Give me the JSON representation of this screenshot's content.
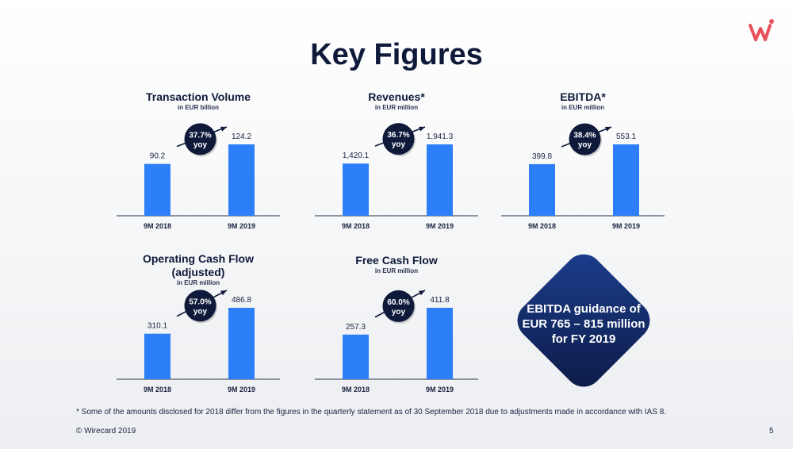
{
  "title": "Key Figures",
  "brand_color": "#e8505b",
  "bar_color": "#2d7ff9",
  "badge_color": "#0f1a3a",
  "chart_data": [
    {
      "type": "bar",
      "title": "Transaction Volume",
      "unit": "in EUR billion",
      "categories": [
        "9M 2018",
        "9M 2019"
      ],
      "values": [
        90.2,
        124.2
      ],
      "value_labels": [
        "90.2",
        "124.2"
      ],
      "growth_label": [
        "37.7%",
        "yoy"
      ]
    },
    {
      "type": "bar",
      "title": "Revenues*",
      "unit": "in EUR million",
      "categories": [
        "9M 2018",
        "9M 2019"
      ],
      "values": [
        1420.1,
        1941.3
      ],
      "value_labels": [
        "1,420.1",
        "1,941.3"
      ],
      "growth_label": [
        "36.7%",
        "yoy"
      ]
    },
    {
      "type": "bar",
      "title": "EBITDA*",
      "unit": "in EUR million",
      "categories": [
        "9M 2018",
        "9M 2019"
      ],
      "values": [
        399.8,
        553.1
      ],
      "value_labels": [
        "399.8",
        "553.1"
      ],
      "growth_label": [
        "38.4%",
        "yoy"
      ]
    },
    {
      "type": "bar",
      "title": "Operating Cash Flow\n(adjusted)",
      "unit": "in EUR million",
      "categories": [
        "9M 2018",
        "9M 2019"
      ],
      "values": [
        310.1,
        486.8
      ],
      "value_labels": [
        "310.1",
        "486.8"
      ],
      "growth_label": [
        "57.0%",
        "yoy"
      ]
    },
    {
      "type": "bar",
      "title": "Free Cash Flow",
      "unit": "in EUR million",
      "categories": [
        "9M 2018",
        "9M 2019"
      ],
      "values": [
        257.3,
        411.8
      ],
      "value_labels": [
        "257.3",
        "411.8"
      ],
      "growth_label": [
        "60.0%",
        "yoy"
      ]
    }
  ],
  "guidance": {
    "text": "EBITDA guidance of EUR 765 – 815 million for FY 2019"
  },
  "footnote": "* Some of the amounts disclosed for 2018 differ from the figures in the quarterly statement as of 30 September 2018 due to adjustments made in accordance with IAS 8.",
  "copyright": "© Wirecard 2019",
  "page_number": "5"
}
